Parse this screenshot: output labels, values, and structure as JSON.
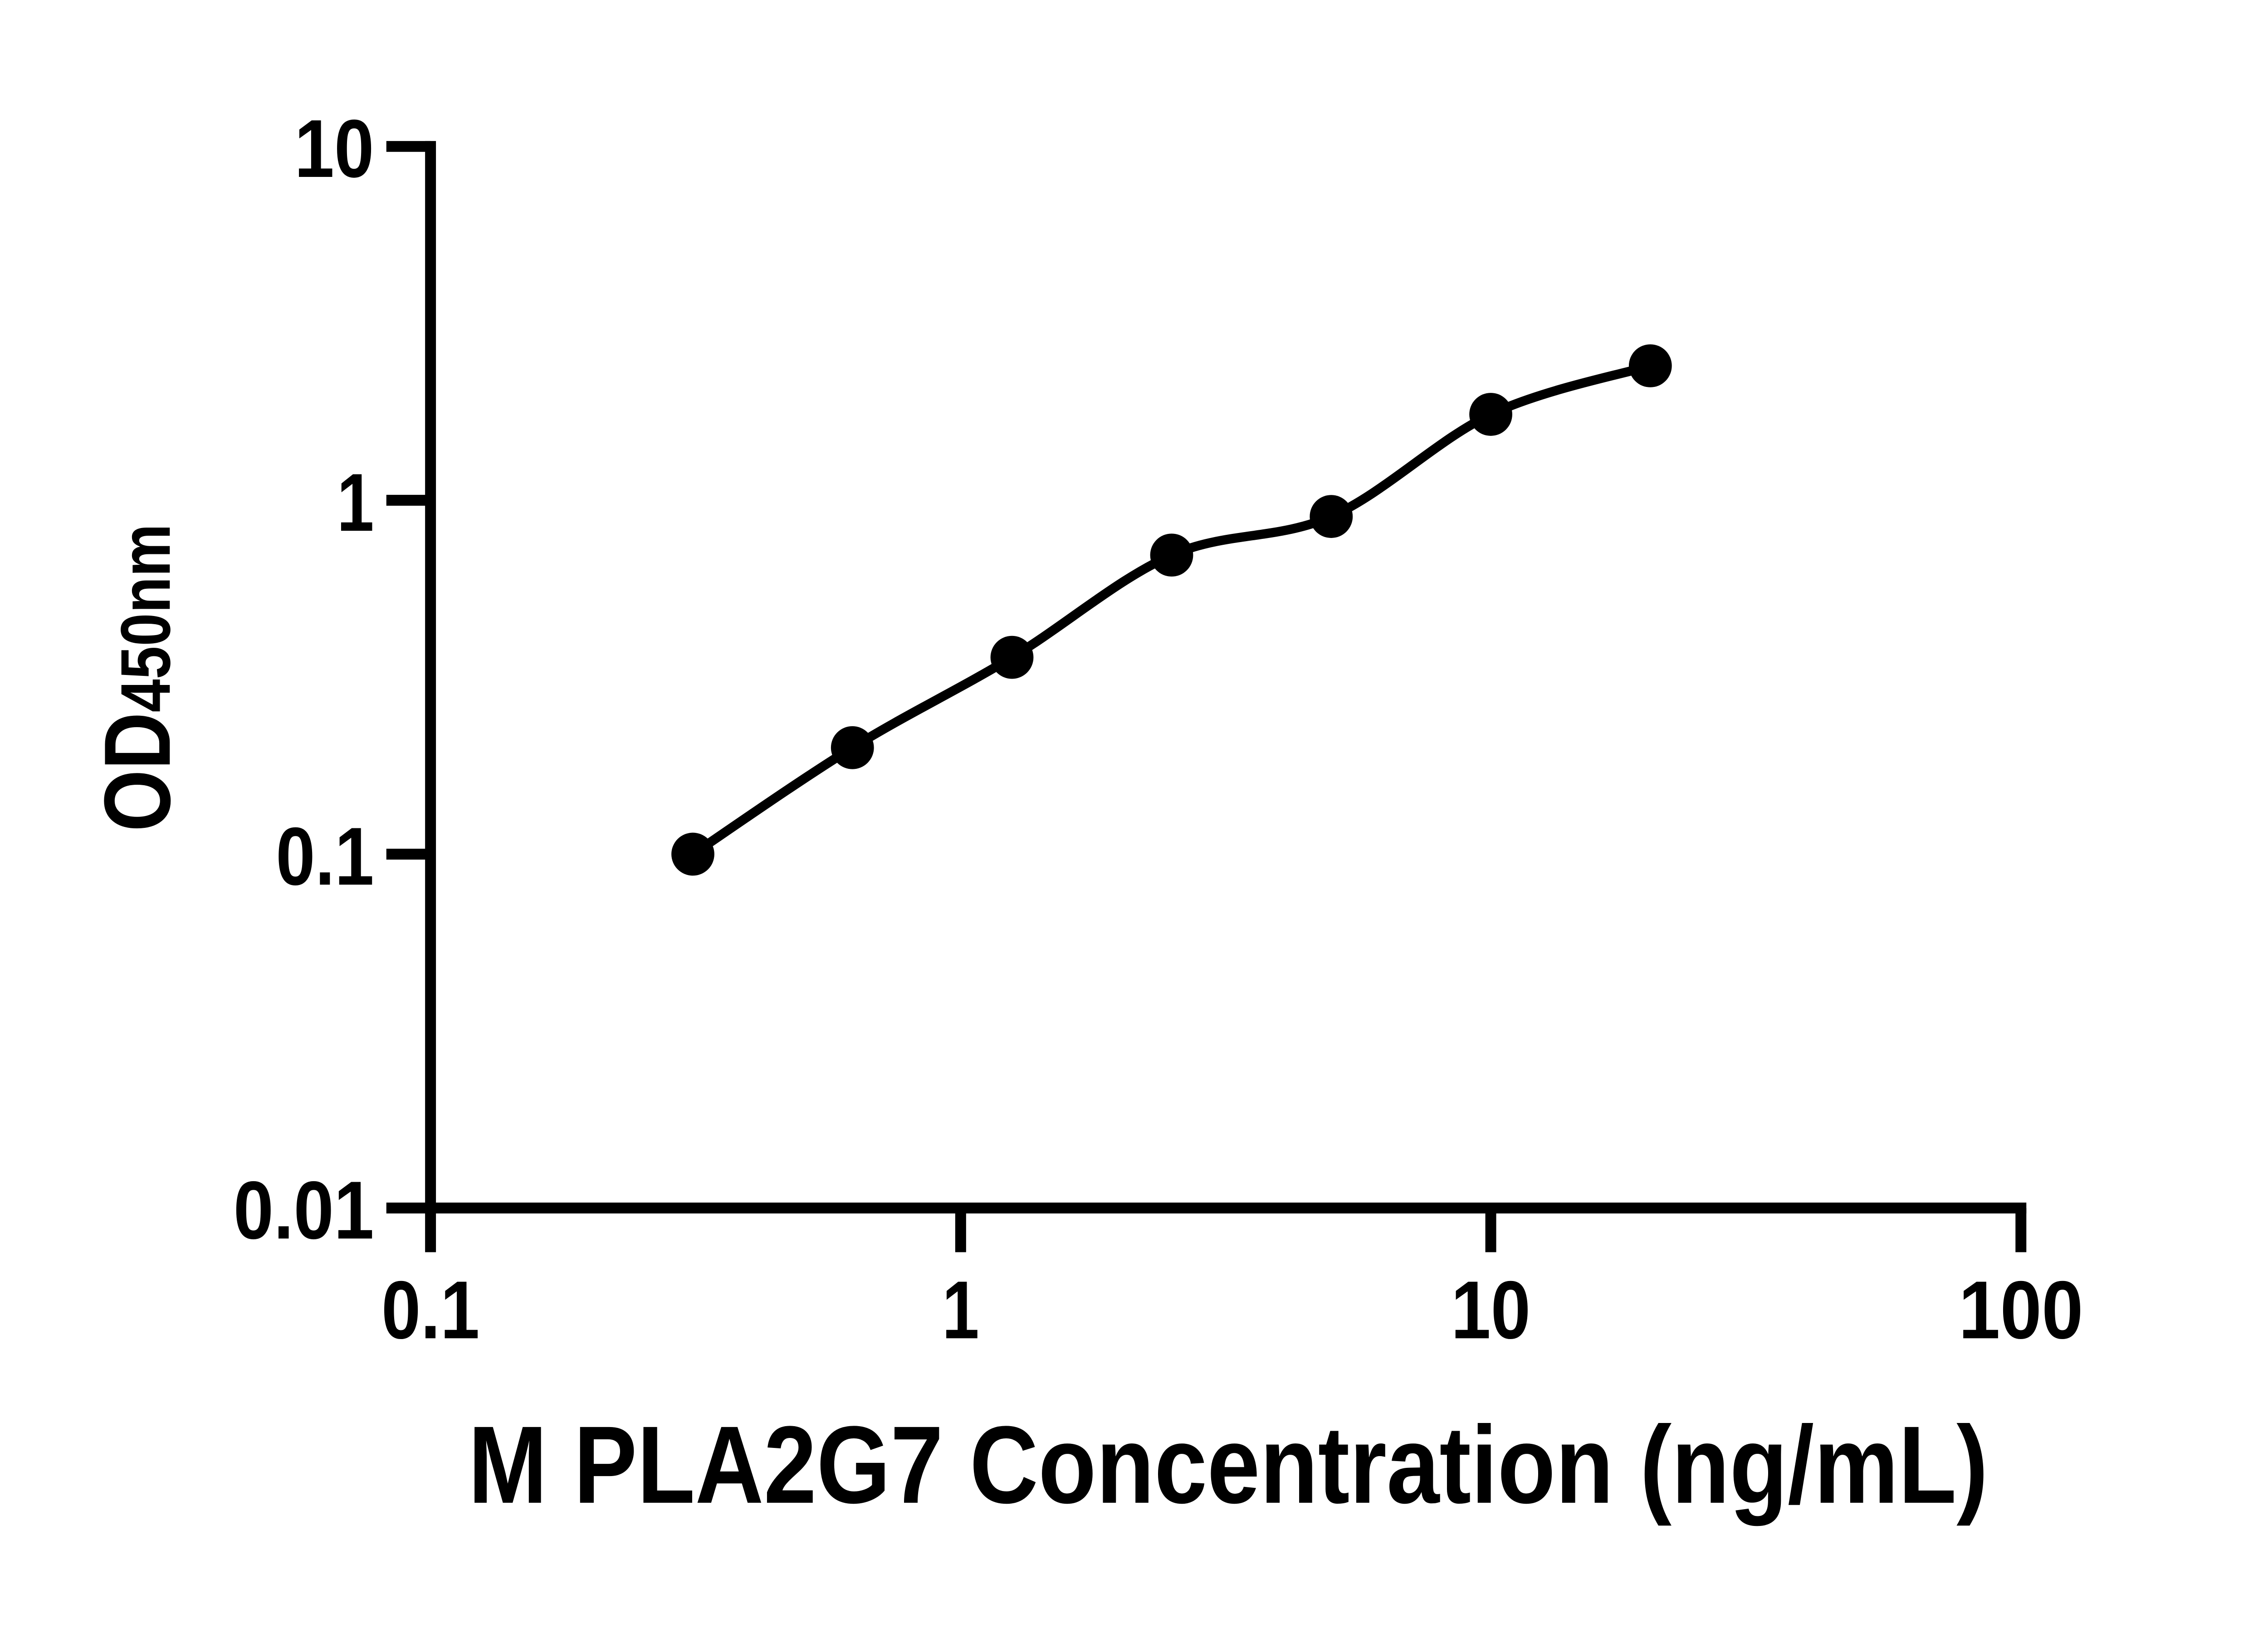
{
  "colors": {
    "ink": "#000000",
    "background": "#ffffff"
  },
  "chart_data": {
    "type": "scatter",
    "title": "",
    "xlabel": "M PLA2G7 Concentration (ng/mL)",
    "ylabel": "OD450nm",
    "ylabel_main": "OD",
    "ylabel_sub": "450nm",
    "xscale": "log10",
    "yscale": "log10",
    "xlim": [
      0.1,
      100
    ],
    "ylim": [
      0.01,
      10
    ],
    "xticks": [
      "0.1",
      "1",
      "10",
      "100"
    ],
    "yticks": [
      "0.01",
      "0.1",
      "1",
      "10"
    ],
    "grid": false,
    "legend": null,
    "marker": {
      "shape": "filled-circle",
      "color": "#000000"
    },
    "line": {
      "type": "fitted-curve-through-points",
      "color": "#000000"
    },
    "points": [
      {
        "x": 0.3125,
        "y": 0.1
      },
      {
        "x": 0.625,
        "y": 0.2
      },
      {
        "x": 1.25,
        "y": 0.36
      },
      {
        "x": 2.5,
        "y": 0.7
      },
      {
        "x": 5,
        "y": 0.9
      },
      {
        "x": 10,
        "y": 1.75
      },
      {
        "x": 20,
        "y": 2.4
      }
    ]
  }
}
